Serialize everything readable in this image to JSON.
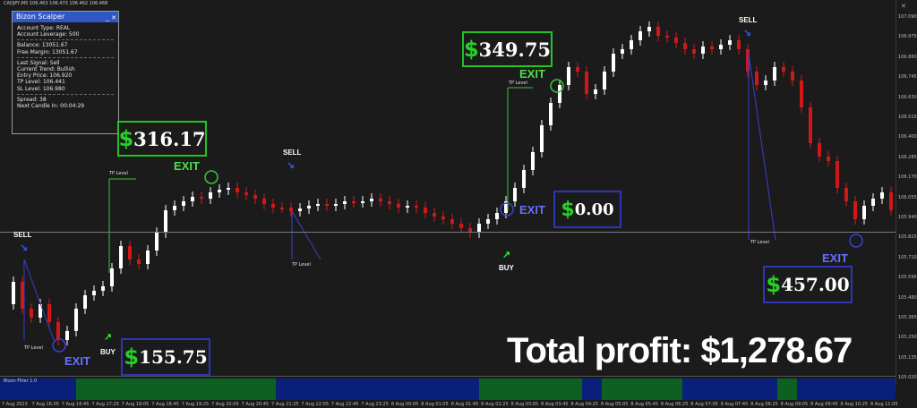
{
  "chart": {
    "symbol": "CADJPY,M5  106.463 106.473 106.462 106.468",
    "close_icon": "close-icon",
    "y_labels": [
      "107.090",
      "106.975",
      "106.860",
      "106.745",
      "106.630",
      "106.515",
      "106.400",
      "106.285",
      "106.170",
      "106.055",
      "105.940",
      "105.825",
      "105.710",
      "105.595",
      "105.480",
      "105.365",
      "105.250",
      "105.135",
      "105.020"
    ],
    "x_labels": [
      "7 Aug 2023",
      "7 Aug 16:05",
      "7 Aug 16:45",
      "7 Aug 17:25",
      "7 Aug 18:05",
      "7 Aug 18:45",
      "7 Aug 19:25",
      "7 Aug 20:05",
      "7 Aug 20:45",
      "7 Aug 21:25",
      "7 Aug 22:05",
      "7 Aug 22:45",
      "7 Aug 23:25",
      "8 Aug 00:05",
      "8 Aug 01:05",
      "8 Aug 01:45",
      "8 Aug 02:25",
      "8 Aug 03:05",
      "8 Aug 03:45",
      "8 Aug 04:25",
      "8 Aug 05:05",
      "8 Aug 05:45",
      "8 Aug 06:25",
      "8 Aug 07:05",
      "8 Aug 07:45",
      "8 Aug 08:25",
      "8 Aug 09:05",
      "8 Aug 09:45",
      "8 Aug 10:25",
      "8 Aug 11:05"
    ],
    "colors": {
      "background": "#1b1b1b",
      "bull": "#ffffff",
      "bear": "#d01818",
      "tp_line": "#38c438",
      "sl_line": "#3a3fd0"
    }
  },
  "panel": {
    "title": "Bizon Scalper",
    "buttons": "_ ✕",
    "account_type": "Account Type: REAL",
    "account_leverage": "Account Leverage: 500",
    "balance": "Balance: 13051.67",
    "free_margin": "Free Margin: 13051.67",
    "last_signal": "Last Signal: Sell",
    "current_trend": "Current Trend: Bullish",
    "entry_price": "Entry Price: 106.920",
    "tp_level": "TP Level: 106.441",
    "sl_level": "SL Level: 106.980",
    "spread": "Spread: 38",
    "next_candle": "Next Candle In: 00:04:29"
  },
  "profits": {
    "p1": {
      "symbol": "$",
      "value": "316.17"
    },
    "p2": {
      "symbol": "$",
      "value": "349.75"
    },
    "p3": {
      "symbol": "$",
      "value": "0.00"
    },
    "p4": {
      "symbol": "$",
      "value": "155.75"
    },
    "p5": {
      "symbol": "$",
      "value": "457.00"
    }
  },
  "labels": {
    "exit": "EXIT",
    "sell": "SELL",
    "buy": "BUY",
    "tp_level": "TP Level"
  },
  "total": "Total profit: $1,278.67",
  "filter": {
    "label": "Bizon Filter 1.0",
    "colors": {
      "blue": "#0a1f7a",
      "green": "#0e5f22"
    }
  }
}
